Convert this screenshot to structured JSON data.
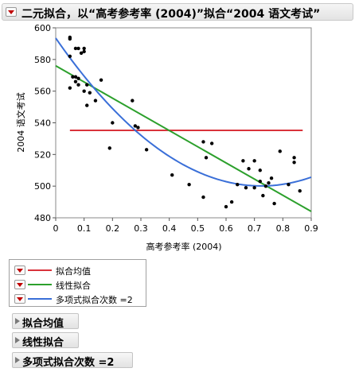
{
  "report": {
    "title": "二元拟合，以“高考参考率 (2004)”拟合“2004 语文考试”"
  },
  "legend": {
    "items": [
      {
        "label": "拟合均值",
        "color": "#d9323b"
      },
      {
        "label": "线性拟合",
        "color": "#2ca02c"
      },
      {
        "label": "多项式拟合次数 =2",
        "color": "#3a6fd8"
      }
    ]
  },
  "sections": [
    {
      "label": "拟合均值"
    },
    {
      "label": "线性拟合"
    },
    {
      "label": "多项式拟合次数 =2"
    }
  ],
  "colors": {
    "points": "#000000",
    "mean": "#d9323b",
    "linear": "#2ca02c",
    "poly": "#3a6fd8"
  },
  "chart_data": {
    "type": "scatter",
    "title": "",
    "xlabel": "高考参考率 (2004)",
    "ylabel": "2004 语文考试",
    "xlim": [
      0,
      0.9
    ],
    "ylim": [
      480,
      600
    ],
    "x_ticks": [
      "0",
      "0.1",
      "0.2",
      "0.3",
      "0.4",
      "0.5",
      "0.6",
      "0.7",
      "0.8",
      "0.9"
    ],
    "y_ticks": [
      "480",
      "500",
      "520",
      "540",
      "560",
      "580",
      "600"
    ],
    "grid": false,
    "points": [
      {
        "x": 0.05,
        "y": 594
      },
      {
        "x": 0.05,
        "y": 593
      },
      {
        "x": 0.05,
        "y": 582
      },
      {
        "x": 0.05,
        "y": 562
      },
      {
        "x": 0.06,
        "y": 569
      },
      {
        "x": 0.07,
        "y": 566
      },
      {
        "x": 0.07,
        "y": 587
      },
      {
        "x": 0.07,
        "y": 569
      },
      {
        "x": 0.08,
        "y": 564
      },
      {
        "x": 0.08,
        "y": 568
      },
      {
        "x": 0.08,
        "y": 587
      },
      {
        "x": 0.09,
        "y": 584
      },
      {
        "x": 0.1,
        "y": 587
      },
      {
        "x": 0.1,
        "y": 585
      },
      {
        "x": 0.1,
        "y": 560
      },
      {
        "x": 0.11,
        "y": 564
      },
      {
        "x": 0.11,
        "y": 551
      },
      {
        "x": 0.12,
        "y": 559
      },
      {
        "x": 0.14,
        "y": 554
      },
      {
        "x": 0.16,
        "y": 567
      },
      {
        "x": 0.19,
        "y": 524
      },
      {
        "x": 0.2,
        "y": 540
      },
      {
        "x": 0.27,
        "y": 554
      },
      {
        "x": 0.28,
        "y": 538
      },
      {
        "x": 0.29,
        "y": 537
      },
      {
        "x": 0.32,
        "y": 523
      },
      {
        "x": 0.41,
        "y": 507
      },
      {
        "x": 0.47,
        "y": 501
      },
      {
        "x": 0.52,
        "y": 528
      },
      {
        "x": 0.52,
        "y": 493
      },
      {
        "x": 0.53,
        "y": 518
      },
      {
        "x": 0.55,
        "y": 527
      },
      {
        "x": 0.6,
        "y": 487
      },
      {
        "x": 0.62,
        "y": 490
      },
      {
        "x": 0.64,
        "y": 501
      },
      {
        "x": 0.66,
        "y": 516
      },
      {
        "x": 0.67,
        "y": 499
      },
      {
        "x": 0.68,
        "y": 511
      },
      {
        "x": 0.7,
        "y": 499
      },
      {
        "x": 0.7,
        "y": 516
      },
      {
        "x": 0.72,
        "y": 503
      },
      {
        "x": 0.72,
        "y": 510
      },
      {
        "x": 0.73,
        "y": 494
      },
      {
        "x": 0.74,
        "y": 500
      },
      {
        "x": 0.75,
        "y": 502
      },
      {
        "x": 0.76,
        "y": 505
      },
      {
        "x": 0.77,
        "y": 489
      },
      {
        "x": 0.79,
        "y": 522
      },
      {
        "x": 0.82,
        "y": 501
      },
      {
        "x": 0.84,
        "y": 518
      },
      {
        "x": 0.84,
        "y": 515
      },
      {
        "x": 0.86,
        "y": 497
      }
    ],
    "fits": [
      {
        "name": "拟合均值",
        "kind": "mean",
        "x_range": [
          0.05,
          0.87
        ],
        "y": 535.2
      },
      {
        "name": "线性拟合",
        "kind": "linear",
        "x_range": [
          0,
          0.9
        ],
        "y_start": 576,
        "y_end": 484
      },
      {
        "name": "多项式拟合次数 =2",
        "kind": "quadratic",
        "x_range": [
          0,
          0.9
        ],
        "coefficients": [
          593.5,
          -258,
          178.2
        ]
      }
    ]
  }
}
